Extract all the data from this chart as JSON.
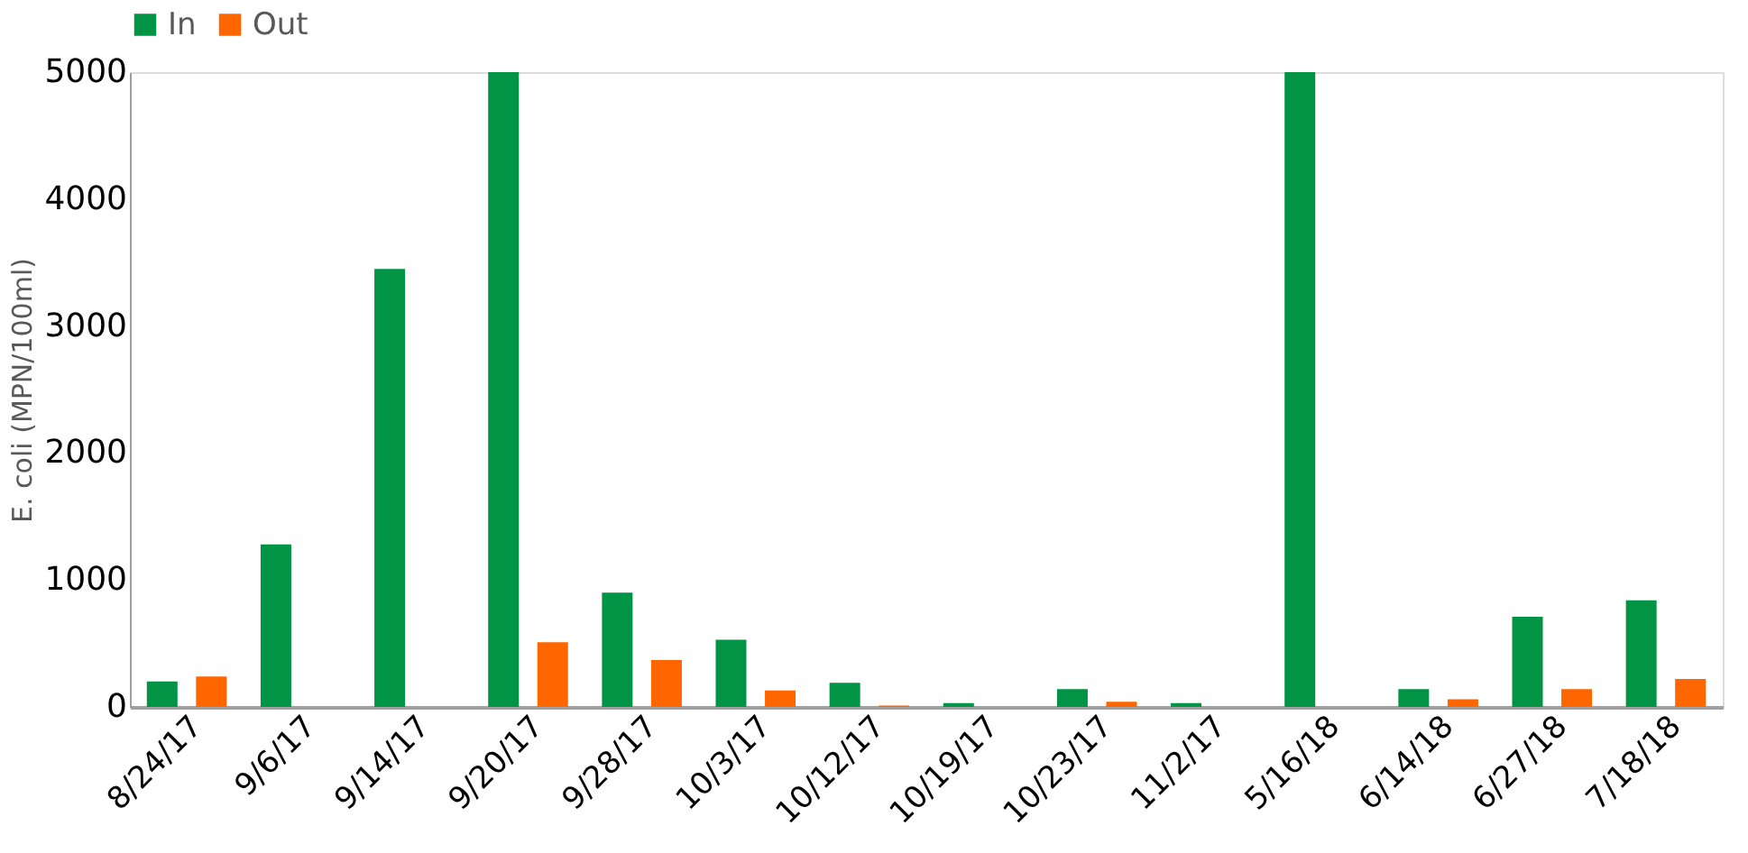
{
  "chart_data": {
    "type": "bar",
    "ylabel": "E. coli (MPN/100ml)",
    "categories": [
      "8/24/17",
      "9/6/17",
      "9/14/17",
      "9/20/17",
      "9/28/17",
      "10/3/17",
      "10/12/17",
      "10/19/17",
      "10/23/17",
      "11/2/17",
      "5/16/18",
      "6/14/18",
      "6/27/18",
      "7/18/18"
    ],
    "series": [
      {
        "name": "In",
        "color": "#009444",
        "values": [
          200,
          1280,
          3450,
          5000,
          900,
          530,
          190,
          30,
          140,
          30,
          5000,
          140,
          710,
          840
        ]
      },
      {
        "name": "Out",
        "color": "#ff6600",
        "values": [
          240,
          0,
          0,
          510,
          370,
          130,
          10,
          0,
          40,
          0,
          0,
          60,
          140,
          220
        ]
      }
    ],
    "ylim": [
      0,
      5000
    ],
    "yticks": [
      0,
      1000,
      2000,
      3000,
      4000,
      5000
    ],
    "grid": false,
    "legend": "top"
  }
}
